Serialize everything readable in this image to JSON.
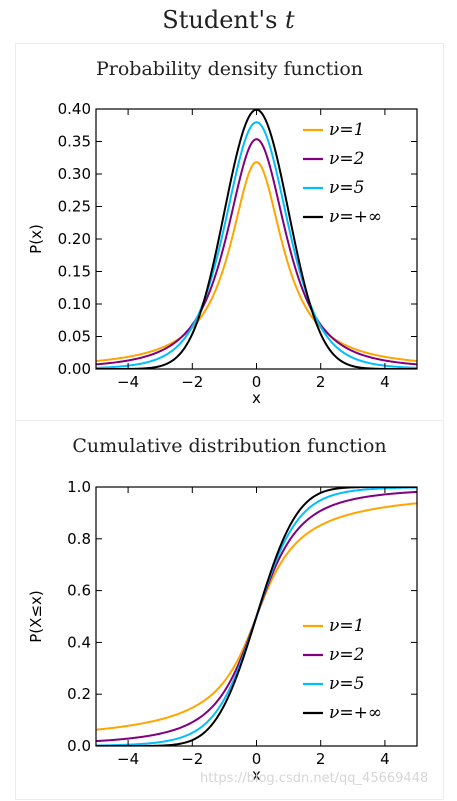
{
  "page": {
    "title_prefix": "Student's ",
    "title_italic": "t"
  },
  "watermark": "https://blog.csdn.net/qq_45669448",
  "colors": {
    "nu1": "#ffa500",
    "nu2": "#800080",
    "nu5": "#00bfff",
    "nuinf": "#000000"
  },
  "chart_data": [
    {
      "type": "line",
      "title": "Probability density function",
      "xlabel": "x",
      "ylabel": "P(x)",
      "xlim": [
        -5,
        5
      ],
      "ylim": [
        0,
        0.4
      ],
      "xticks": [
        -4,
        -2,
        0,
        2,
        4
      ],
      "xtick_labels": [
        "−4",
        "−2",
        "0",
        "2",
        "4"
      ],
      "yticks": [
        0,
        0.05,
        0.1,
        0.15,
        0.2,
        0.25,
        0.3,
        0.35,
        0.4
      ],
      "ytick_labels": [
        "0.00",
        "0.05",
        "0.10",
        "0.15",
        "0.20",
        "0.25",
        "0.30",
        "0.35",
        "0.40"
      ],
      "legend_position": "top-right",
      "series": [
        {
          "name": "ν=1",
          "color": "#ffa500",
          "x": [
            -5,
            -4,
            -3,
            -2,
            -1,
            0,
            1,
            2,
            3,
            4,
            5
          ],
          "y": [
            0.012,
            0.019,
            0.032,
            0.064,
            0.159,
            0.318,
            0.159,
            0.064,
            0.032,
            0.019,
            0.012
          ]
        },
        {
          "name": "ν=2",
          "color": "#800080",
          "x": [
            -5,
            -4,
            -3,
            -2,
            -1,
            0,
            1,
            2,
            3,
            4,
            5
          ],
          "y": [
            0.007,
            0.013,
            0.027,
            0.068,
            0.192,
            0.354,
            0.192,
            0.068,
            0.027,
            0.013,
            0.007
          ]
        },
        {
          "name": "ν=5",
          "color": "#00bfff",
          "x": [
            -5,
            -4,
            -3,
            -2,
            -1,
            0,
            1,
            2,
            3,
            4,
            5
          ],
          "y": [
            0.002,
            0.005,
            0.017,
            0.065,
            0.22,
            0.38,
            0.22,
            0.065,
            0.017,
            0.005,
            0.002
          ]
        },
        {
          "name": "ν=+∞",
          "color": "#000000",
          "x": [
            -5,
            -4,
            -3,
            -2,
            -1,
            0,
            1,
            2,
            3,
            4,
            5
          ],
          "y": [
            0.0,
            0.0,
            0.004,
            0.054,
            0.242,
            0.399,
            0.242,
            0.054,
            0.004,
            0.0,
            0.0
          ]
        }
      ]
    },
    {
      "type": "line",
      "title": "Cumulative distribution function",
      "xlabel": "x",
      "ylabel": "P(X≤x)",
      "xlim": [
        -5,
        5
      ],
      "ylim": [
        0,
        1.0
      ],
      "xticks": [
        -4,
        -2,
        0,
        2,
        4
      ],
      "xtick_labels": [
        "−4",
        "−2",
        "0",
        "2",
        "4"
      ],
      "yticks": [
        0,
        0.2,
        0.4,
        0.6,
        0.8,
        1.0
      ],
      "ytick_labels": [
        "0.0",
        "0.2",
        "0.4",
        "0.6",
        "0.8",
        "1.0"
      ],
      "legend_position": "lower-right",
      "series": [
        {
          "name": "ν=1",
          "color": "#ffa500",
          "x": [
            -5,
            -4,
            -3,
            -2,
            -1,
            0,
            1,
            2,
            3,
            4,
            5
          ],
          "y": [
            0.063,
            0.078,
            0.102,
            0.148,
            0.25,
            0.5,
            0.75,
            0.852,
            0.898,
            0.922,
            0.937
          ]
        },
        {
          "name": "ν=2",
          "color": "#800080",
          "x": [
            -5,
            -4,
            -3,
            -2,
            -1,
            0,
            1,
            2,
            3,
            4,
            5
          ],
          "y": [
            0.019,
            0.029,
            0.048,
            0.092,
            0.211,
            0.5,
            0.789,
            0.908,
            0.952,
            0.971,
            0.981
          ]
        },
        {
          "name": "ν=5",
          "color": "#00bfff",
          "x": [
            -5,
            -4,
            -3,
            -2,
            -1,
            0,
            1,
            2,
            3,
            4,
            5
          ],
          "y": [
            0.002,
            0.005,
            0.015,
            0.051,
            0.182,
            0.5,
            0.818,
            0.949,
            0.985,
            0.995,
            0.998
          ]
        },
        {
          "name": "ν=+∞",
          "color": "#000000",
          "x": [
            -5,
            -4,
            -3,
            -2,
            -1,
            0,
            1,
            2,
            3,
            4,
            5
          ],
          "y": [
            0.0,
            0.0,
            0.001,
            0.023,
            0.159,
            0.5,
            0.841,
            0.977,
            0.999,
            1.0,
            1.0
          ]
        }
      ]
    }
  ]
}
